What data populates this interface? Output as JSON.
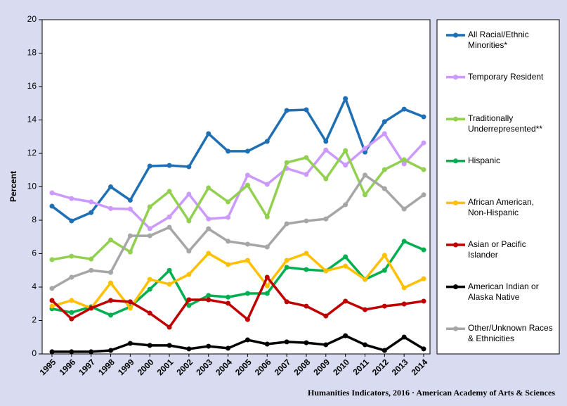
{
  "chart_data": {
    "type": "line",
    "y_label": "Percent",
    "source": "Humanities Indicators, 2016 · American Academy of Arts & Sciences",
    "categories": [
      "1995",
      "1996",
      "1997",
      "1998",
      "1999",
      "2000",
      "2001",
      "2002",
      "2003",
      "2004",
      "2005",
      "2006",
      "2007",
      "2008",
      "2009",
      "2010",
      "2011",
      "2012",
      "2013",
      "2014"
    ],
    "ylim": [
      0,
      20
    ],
    "yticks": [
      0,
      2,
      4,
      6,
      8,
      10,
      12,
      14,
      16,
      18,
      20
    ],
    "legend": "right",
    "series": [
      {
        "name": "All Racial/Ethnic Minorities*",
        "color": "#1f6fb5",
        "values": [
          8.84,
          7.96,
          8.46,
          10.0,
          9.2,
          11.24,
          11.28,
          11.2,
          13.18,
          12.13,
          12.13,
          12.72,
          14.57,
          14.61,
          12.72,
          15.28,
          12.08,
          13.9,
          14.65,
          14.19
        ]
      },
      {
        "name": "Temporary Resident",
        "color": "#cc99ff",
        "values": [
          9.64,
          9.3,
          9.1,
          8.7,
          8.67,
          7.5,
          8.2,
          9.56,
          8.08,
          8.17,
          10.7,
          10.15,
          11.1,
          10.74,
          12.2,
          11.3,
          12.3,
          13.18,
          11.37,
          12.63
        ]
      },
      {
        "name": "Traditionally Underrepresented**",
        "color": "#92d050",
        "values": [
          5.64,
          5.85,
          5.68,
          6.82,
          6.1,
          8.8,
          9.73,
          7.96,
          9.94,
          9.1,
          10.1,
          8.2,
          11.45,
          11.75,
          10.48,
          12.17,
          9.52,
          11.03,
          11.62,
          11.03
        ]
      },
      {
        "name": "Hispanic",
        "color": "#00b050",
        "values": [
          2.7,
          2.48,
          2.82,
          2.32,
          2.82,
          3.87,
          5.0,
          2.9,
          3.5,
          3.4,
          3.62,
          3.62,
          5.18,
          5.05,
          4.97,
          5.81,
          4.46,
          5.0,
          6.74,
          6.23
        ]
      },
      {
        "name": "African American, Non-Hispanic",
        "color": "#ffc000",
        "values": [
          2.86,
          3.2,
          2.74,
          4.25,
          2.74,
          4.46,
          4.17,
          4.76,
          6.02,
          5.35,
          5.6,
          4.08,
          5.6,
          6.02,
          4.97,
          5.26,
          4.46,
          5.9,
          3.96,
          4.5
        ]
      },
      {
        "name": "Asian or Pacific Islander",
        "color": "#c00000",
        "values": [
          3.2,
          2.1,
          2.74,
          3.2,
          3.12,
          2.44,
          1.6,
          3.24,
          3.24,
          3.03,
          2.06,
          4.59,
          3.12,
          2.86,
          2.27,
          3.16,
          2.65,
          2.86,
          2.99,
          3.16
        ]
      },
      {
        "name": "American Indian or Alaska Native",
        "color": "#000000",
        "values": [
          0.13,
          0.13,
          0.13,
          0.21,
          0.63,
          0.51,
          0.51,
          0.3,
          0.46,
          0.34,
          0.84,
          0.59,
          0.72,
          0.67,
          0.55,
          1.09,
          0.55,
          0.21,
          1.01,
          0.3
        ]
      },
      {
        "name": "Other/Unknown Races & Ethnicities",
        "color": "#a6a6a6",
        "values": [
          3.92,
          4.59,
          5.0,
          4.88,
          7.07,
          7.07,
          7.58,
          6.15,
          7.49,
          6.74,
          6.57,
          6.4,
          7.79,
          7.96,
          8.08,
          8.93,
          10.7,
          9.89,
          8.67,
          9.52
        ]
      }
    ]
  }
}
